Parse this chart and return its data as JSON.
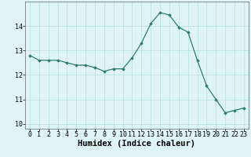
{
  "x": [
    0,
    1,
    2,
    3,
    4,
    5,
    6,
    7,
    8,
    9,
    10,
    11,
    12,
    13,
    14,
    15,
    16,
    17,
    18,
    19,
    20,
    21,
    22,
    23
  ],
  "y": [
    12.8,
    12.6,
    12.6,
    12.6,
    12.5,
    12.4,
    12.4,
    12.3,
    12.15,
    12.25,
    12.25,
    12.7,
    13.3,
    14.1,
    14.55,
    14.45,
    13.95,
    13.75,
    12.6,
    11.55,
    11.0,
    10.45,
    10.55,
    10.65
  ],
  "xlabel": "Humidex (Indice chaleur)",
  "xlim": [
    -0.5,
    23.5
  ],
  "ylim": [
    9.8,
    15.0
  ],
  "yticks": [
    10,
    11,
    12,
    13,
    14
  ],
  "xticks": [
    0,
    1,
    2,
    3,
    4,
    5,
    6,
    7,
    8,
    9,
    10,
    11,
    12,
    13,
    14,
    15,
    16,
    17,
    18,
    19,
    20,
    21,
    22,
    23
  ],
  "line_color": "#2e7d6e",
  "marker": "D",
  "marker_size": 1.8,
  "bg_color": "#dff4f4",
  "grid_color": "#b8dede",
  "xlabel_fontsize": 7.5,
  "tick_fontsize": 6.0
}
